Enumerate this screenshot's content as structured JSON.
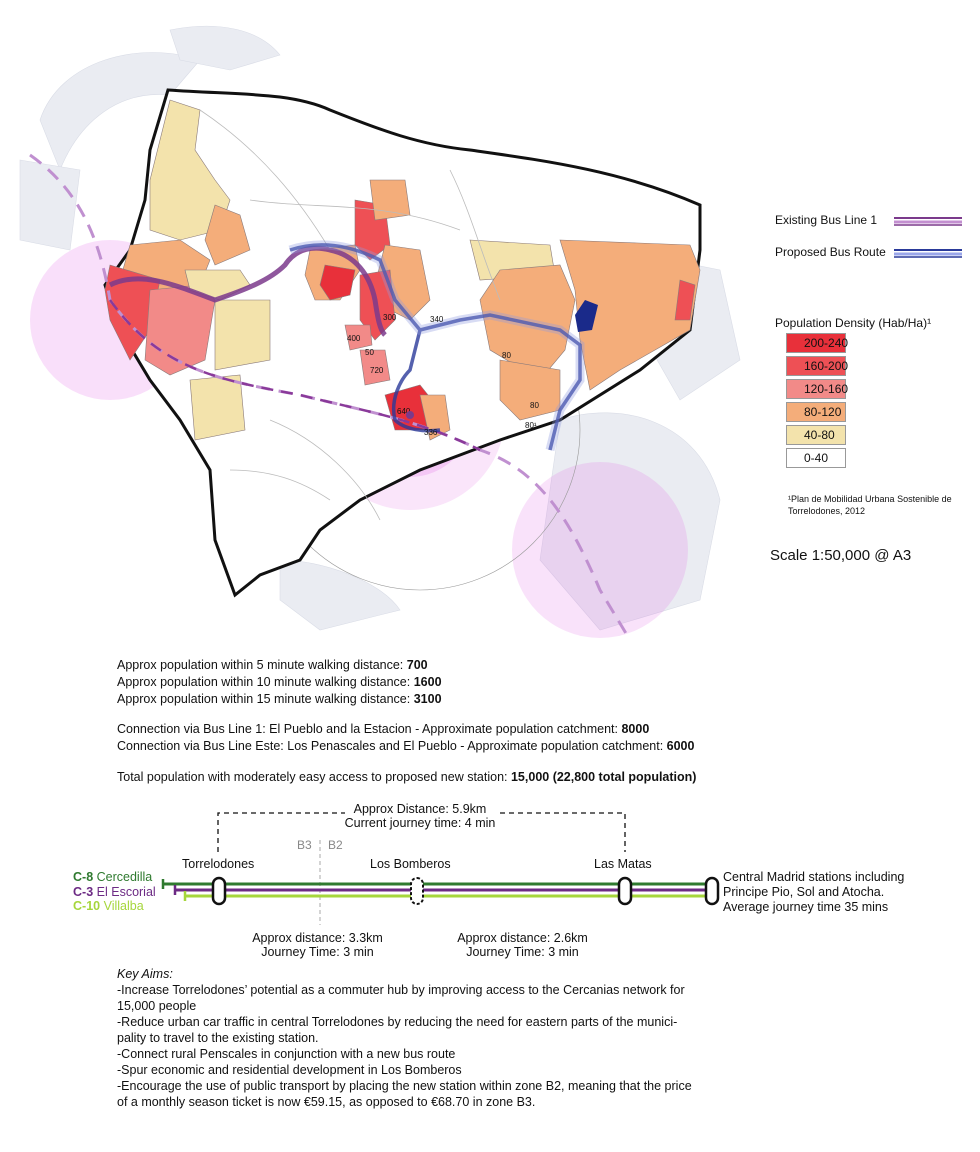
{
  "legend": {
    "existing_bus": "Existing Bus Line 1",
    "proposed_bus": "Proposed Bus Route",
    "density_title": "Population Density (Hab/Ha)¹",
    "density_classes": [
      {
        "label": "200-240",
        "color": "#e8303a"
      },
      {
        "label": "160-200",
        "color": "#ee5055"
      },
      {
        "label": "120-160",
        "color": "#f28a88"
      },
      {
        "label": "80-120",
        "color": "#f4ad7a"
      },
      {
        "label": "40-80",
        "color": "#f3e3ac"
      },
      {
        "label": "0-40",
        "color": "#ffffff"
      }
    ],
    "footnote_line1": "¹Plan de Mobilidad Urbana Sostenible de",
    "footnote_line2": "Torrelodones, 2012",
    "scale": "Scale 1:50,000 @ A3"
  },
  "map_labels": {
    "d300": "300",
    "d340": "340",
    "d400": "400",
    "d80a": "80",
    "d720": "720",
    "d640": "640",
    "d336": "336",
    "d80b": "80",
    "d80c": "80¹",
    "d50": "50"
  },
  "colors": {
    "existing_bus": "#7b3a8c",
    "proposed_bus": "#2a3a9a",
    "walk_circle": "#e36ee6",
    "c8": "#2f7a2f",
    "c3": "#6c2a84",
    "c10": "#a6d63c"
  },
  "stats": {
    "walk5_text": "Approx population within 5 minute walking distance: ",
    "walk5_value": "700",
    "walk10_text": "Approx population within 10 minute walking distance: ",
    "walk10_value": "1600",
    "walk15_text": "Approx population within 15 minute walking distance: ",
    "walk15_value": "3100",
    "bus1_text": "Connection via Bus Line 1: El Pueblo and la Estacion - Approximate population catchment: ",
    "bus1_value": "8000",
    "este_text": "Connection via Bus Line Este: Los Penascales and El Pueblo - Approximate population catchment: ",
    "este_value": "6000",
    "total_text": "Total population with moderately easy access to proposed new station: ",
    "total_value": "15,000 (22,800 total population)"
  },
  "line_diagram": {
    "top_distance": "Approx Distance: 5.9km",
    "top_time": "Current journey time: 4 min",
    "zone_b3": "B3",
    "zone_b2": "B2",
    "station_1": "Torrelodones",
    "station_2": "Los Bomberos",
    "station_3": "Las Matas",
    "line_c8_code": "C-8",
    "line_c8_name": "Cercedilla",
    "line_c3_code": "C-3",
    "line_c3_name": "El Escorial",
    "line_c10_code": "C-10",
    "line_c10_name": "Villalba",
    "madrid_1": "Central Madrid stations including",
    "madrid_2": "Principe Pio, Sol and Atocha.",
    "madrid_3": "Average journey time 35 mins",
    "seg1_distance": "Approx distance: 3.3km",
    "seg1_time": "Journey Time: 3 min",
    "seg2_distance": "Approx distance: 2.6km",
    "seg2_time": "Journey Time: 3 min"
  },
  "aims": {
    "title": "Key Aims:",
    "a1_l1": "-Increase Torrelodones’ potential as a commuter hub by improving access to the Cercanias network for",
    "a1_l2": "15,000 people",
    "a2_l1": "-Reduce urban car traffic in central Torrelodones by reducing the need for eastern parts of the munici-",
    "a2_l2": "pality to travel to the existing station.",
    "a3": "-Connect rural Penscales in conjunction with a new bus route",
    "a4": "-Spur economic and residential development in Los Bomberos",
    "a5_l1": "-Encourage the use of public transport by placing the new station within zone B2, meaning that the price",
    "a5_l2": "of a monthly season ticket is now €59.15, as opposed to €68.70 in zone B3."
  }
}
